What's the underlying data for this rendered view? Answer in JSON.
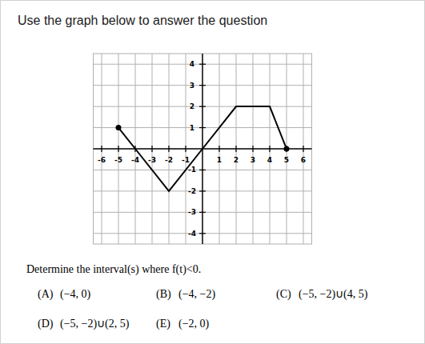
{
  "header": {
    "instruction": "Use the graph below to answer the question"
  },
  "chart_data": {
    "type": "line",
    "x": [
      -5,
      -4,
      -2,
      0,
      2,
      4,
      5
    ],
    "values": [
      1,
      0,
      -2,
      0,
      2,
      2,
      0
    ],
    "color": "#000000",
    "marker": "endpoints",
    "xlim": [
      -6.5,
      6.5
    ],
    "ylim": [
      -4.5,
      4.5
    ],
    "xticks": [
      -6,
      -5,
      -4,
      -3,
      -2,
      -1,
      1,
      2,
      3,
      4,
      5,
      6
    ],
    "yticks": [
      -4,
      -3,
      -2,
      -1,
      1,
      2,
      3,
      4
    ],
    "grid": true
  },
  "question": {
    "prompt": "Determine the interval(s) where f(t)<0.",
    "options": [
      {
        "letter": "(A)",
        "text": "(−4, 0)"
      },
      {
        "letter": "(B)",
        "text": "(−4, −2)"
      },
      {
        "letter": "(C)",
        "text": "(−5, −2)∪(4, 5)"
      },
      {
        "letter": "(D)",
        "text": "(−5, −2)∪(2, 5)"
      },
      {
        "letter": "(E)",
        "text": "(−2, 0)"
      }
    ]
  }
}
